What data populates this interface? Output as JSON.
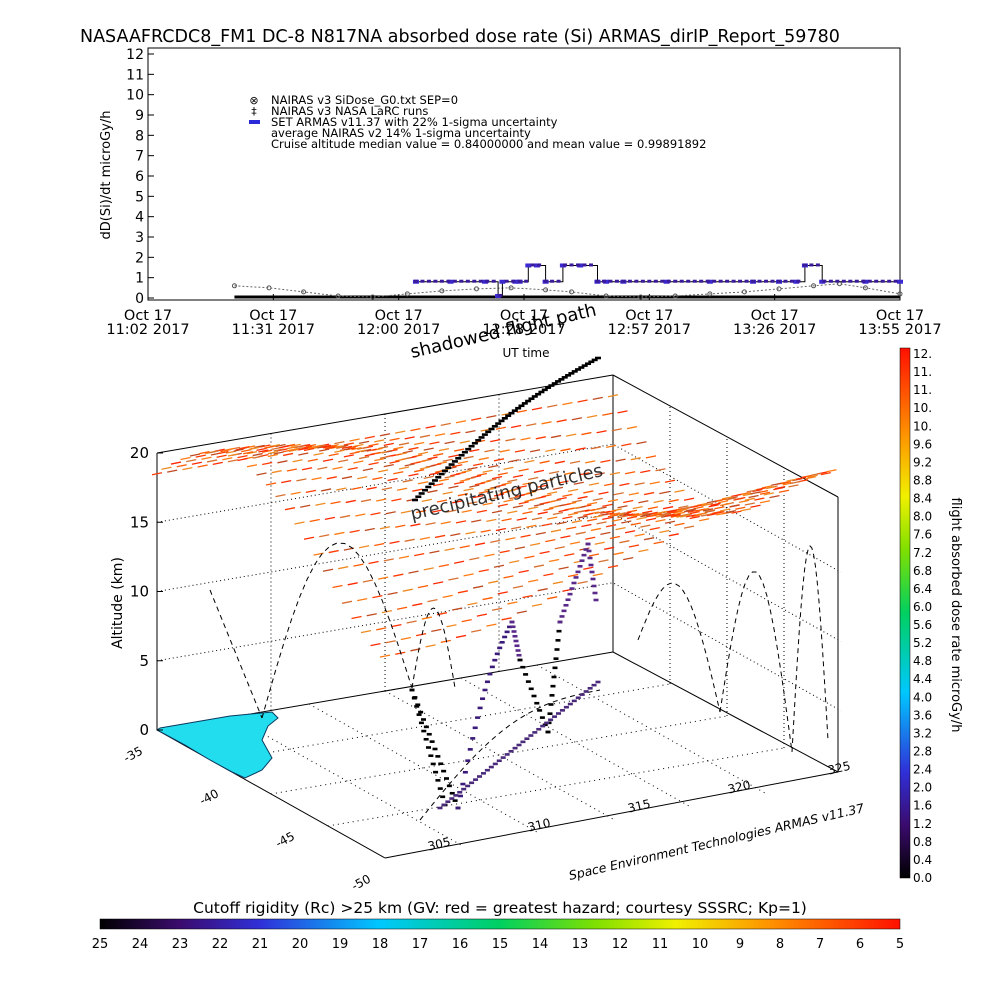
{
  "page_title": "NASAAFRCDC8_FM1 DC-8   N817NA absorbed dose rate (Si) ARMAS_dirIP_Report_59780",
  "chart_data": [
    {
      "type": "line",
      "ylabel": "dD(Si)/dt microGy/h",
      "ylim": [
        0,
        12
      ],
      "yticks": [
        "0",
        "1",
        "2",
        "3",
        "4",
        "5",
        "6",
        "7",
        "8",
        "9",
        "10",
        "11",
        "12"
      ],
      "xlabel": "UT time",
      "xticks": [
        {
          "line1": "Oct 17",
          "line2": "11:02 2017"
        },
        {
          "line1": "Oct 17",
          "line2": "11:31 2017"
        },
        {
          "line1": "Oct 17",
          "line2": "12:00 2017"
        },
        {
          "line1": "Oct 17",
          "line2": "12:28 2017"
        },
        {
          "line1": "Oct 17",
          "line2": "12:57 2017"
        },
        {
          "line1": "Oct 17",
          "line2": "13:26 2017"
        },
        {
          "line1": "Oct 17",
          "line2": "13:55 2017"
        }
      ],
      "xlim_minutes": [
        0,
        174
      ],
      "legend": [
        {
          "symbol": "⊗",
          "label": "NAIRAS v3 SiDose_G0.txt SEP=0"
        },
        {
          "symbol": "‡",
          "label": "NAIRAS v3 NASA LaRC runs"
        },
        {
          "symbol": "▬",
          "label": "SET ARMAS v11.37 with 22% 1-sigma uncertainty",
          "color": "#2a2ad8"
        },
        {
          "symbol": "",
          "label": "average NAIRAS v2 14% 1-sigma uncertainty"
        },
        {
          "symbol": "",
          "label": "Cruise altitude median value =   0.84000000 and mean value =   0.99891892"
        }
      ],
      "series": [
        {
          "name": "NAIRAS v3 SiDose_G0.txt SEP=0",
          "x_minutes": [
            20,
            28,
            36,
            44,
            52,
            60,
            68,
            76,
            84,
            92,
            98,
            106,
            114,
            122,
            130,
            138,
            146,
            154,
            160,
            166,
            174
          ],
          "values": [
            0.6,
            0.5,
            0.3,
            0.1,
            0.05,
            0.2,
            0.35,
            0.45,
            0.5,
            0.4,
            0.3,
            0.1,
            0.05,
            0.1,
            0.2,
            0.3,
            0.45,
            0.6,
            0.7,
            0.5,
            0.2
          ]
        },
        {
          "name": "SET ARMAS v11.37",
          "x_minutes": [
            62,
            70,
            78,
            81,
            82,
            85,
            86,
            88,
            90,
            92,
            96,
            100,
            104,
            106,
            110,
            120,
            130,
            140,
            146,
            150,
            152,
            156,
            166,
            174
          ],
          "values": [
            0.8,
            0.8,
            0.8,
            0.1,
            0.8,
            0.8,
            0.8,
            1.6,
            1.6,
            0.8,
            1.6,
            1.6,
            0.8,
            0.8,
            0.8,
            0.8,
            0.8,
            0.8,
            0.8,
            0.8,
            1.6,
            0.8,
            0.8,
            0.8
          ]
        }
      ]
    },
    {
      "type": "scatter",
      "annotations": [
        "shadowed flight path",
        "precipitating particles",
        "Space Environment Technologies ARMAS v11.37"
      ],
      "zlabel": "Altitude (km)",
      "zticks": [
        "0",
        "5",
        "10",
        "15",
        "20"
      ],
      "lat_ticks": [
        "-35",
        "-40",
        "-45",
        "-50"
      ],
      "lon_ticks": [
        "305",
        "310",
        "315",
        "320",
        "325"
      ],
      "right_colorbar": {
        "label": "flight absorbed dose rate microGy/h",
        "ticks": [
          "12.",
          "11.",
          "11.",
          "10.",
          "10.",
          "9.6",
          "9.2",
          "8.8",
          "8.4",
          "8.0",
          "7.6",
          "7.2",
          "6.8",
          "6.4",
          "6.0",
          "5.6",
          "5.2",
          "4.8",
          "4.4",
          "4.0",
          "3.6",
          "3.2",
          "2.8",
          "2.4",
          "2.0",
          "1.6",
          "1.2",
          "0.8",
          "0.4",
          "0.0"
        ]
      },
      "bottom_colorbar": {
        "title": "Cutoff rigidity (Rc) >25 km (GV: red = greatest hazard; courtesy SSSRC; Kp=1)",
        "ticks": [
          "25",
          "24",
          "23",
          "22",
          "21",
          "20",
          "19",
          "18",
          "17",
          "16",
          "15",
          "14",
          "13",
          "12",
          "11",
          "10",
          "9",
          "8",
          "7",
          "6",
          "5"
        ]
      },
      "colors": {
        "land": "#22ddee",
        "armas": "#2a2ad8",
        "path": "#5a2a8a"
      }
    }
  ]
}
